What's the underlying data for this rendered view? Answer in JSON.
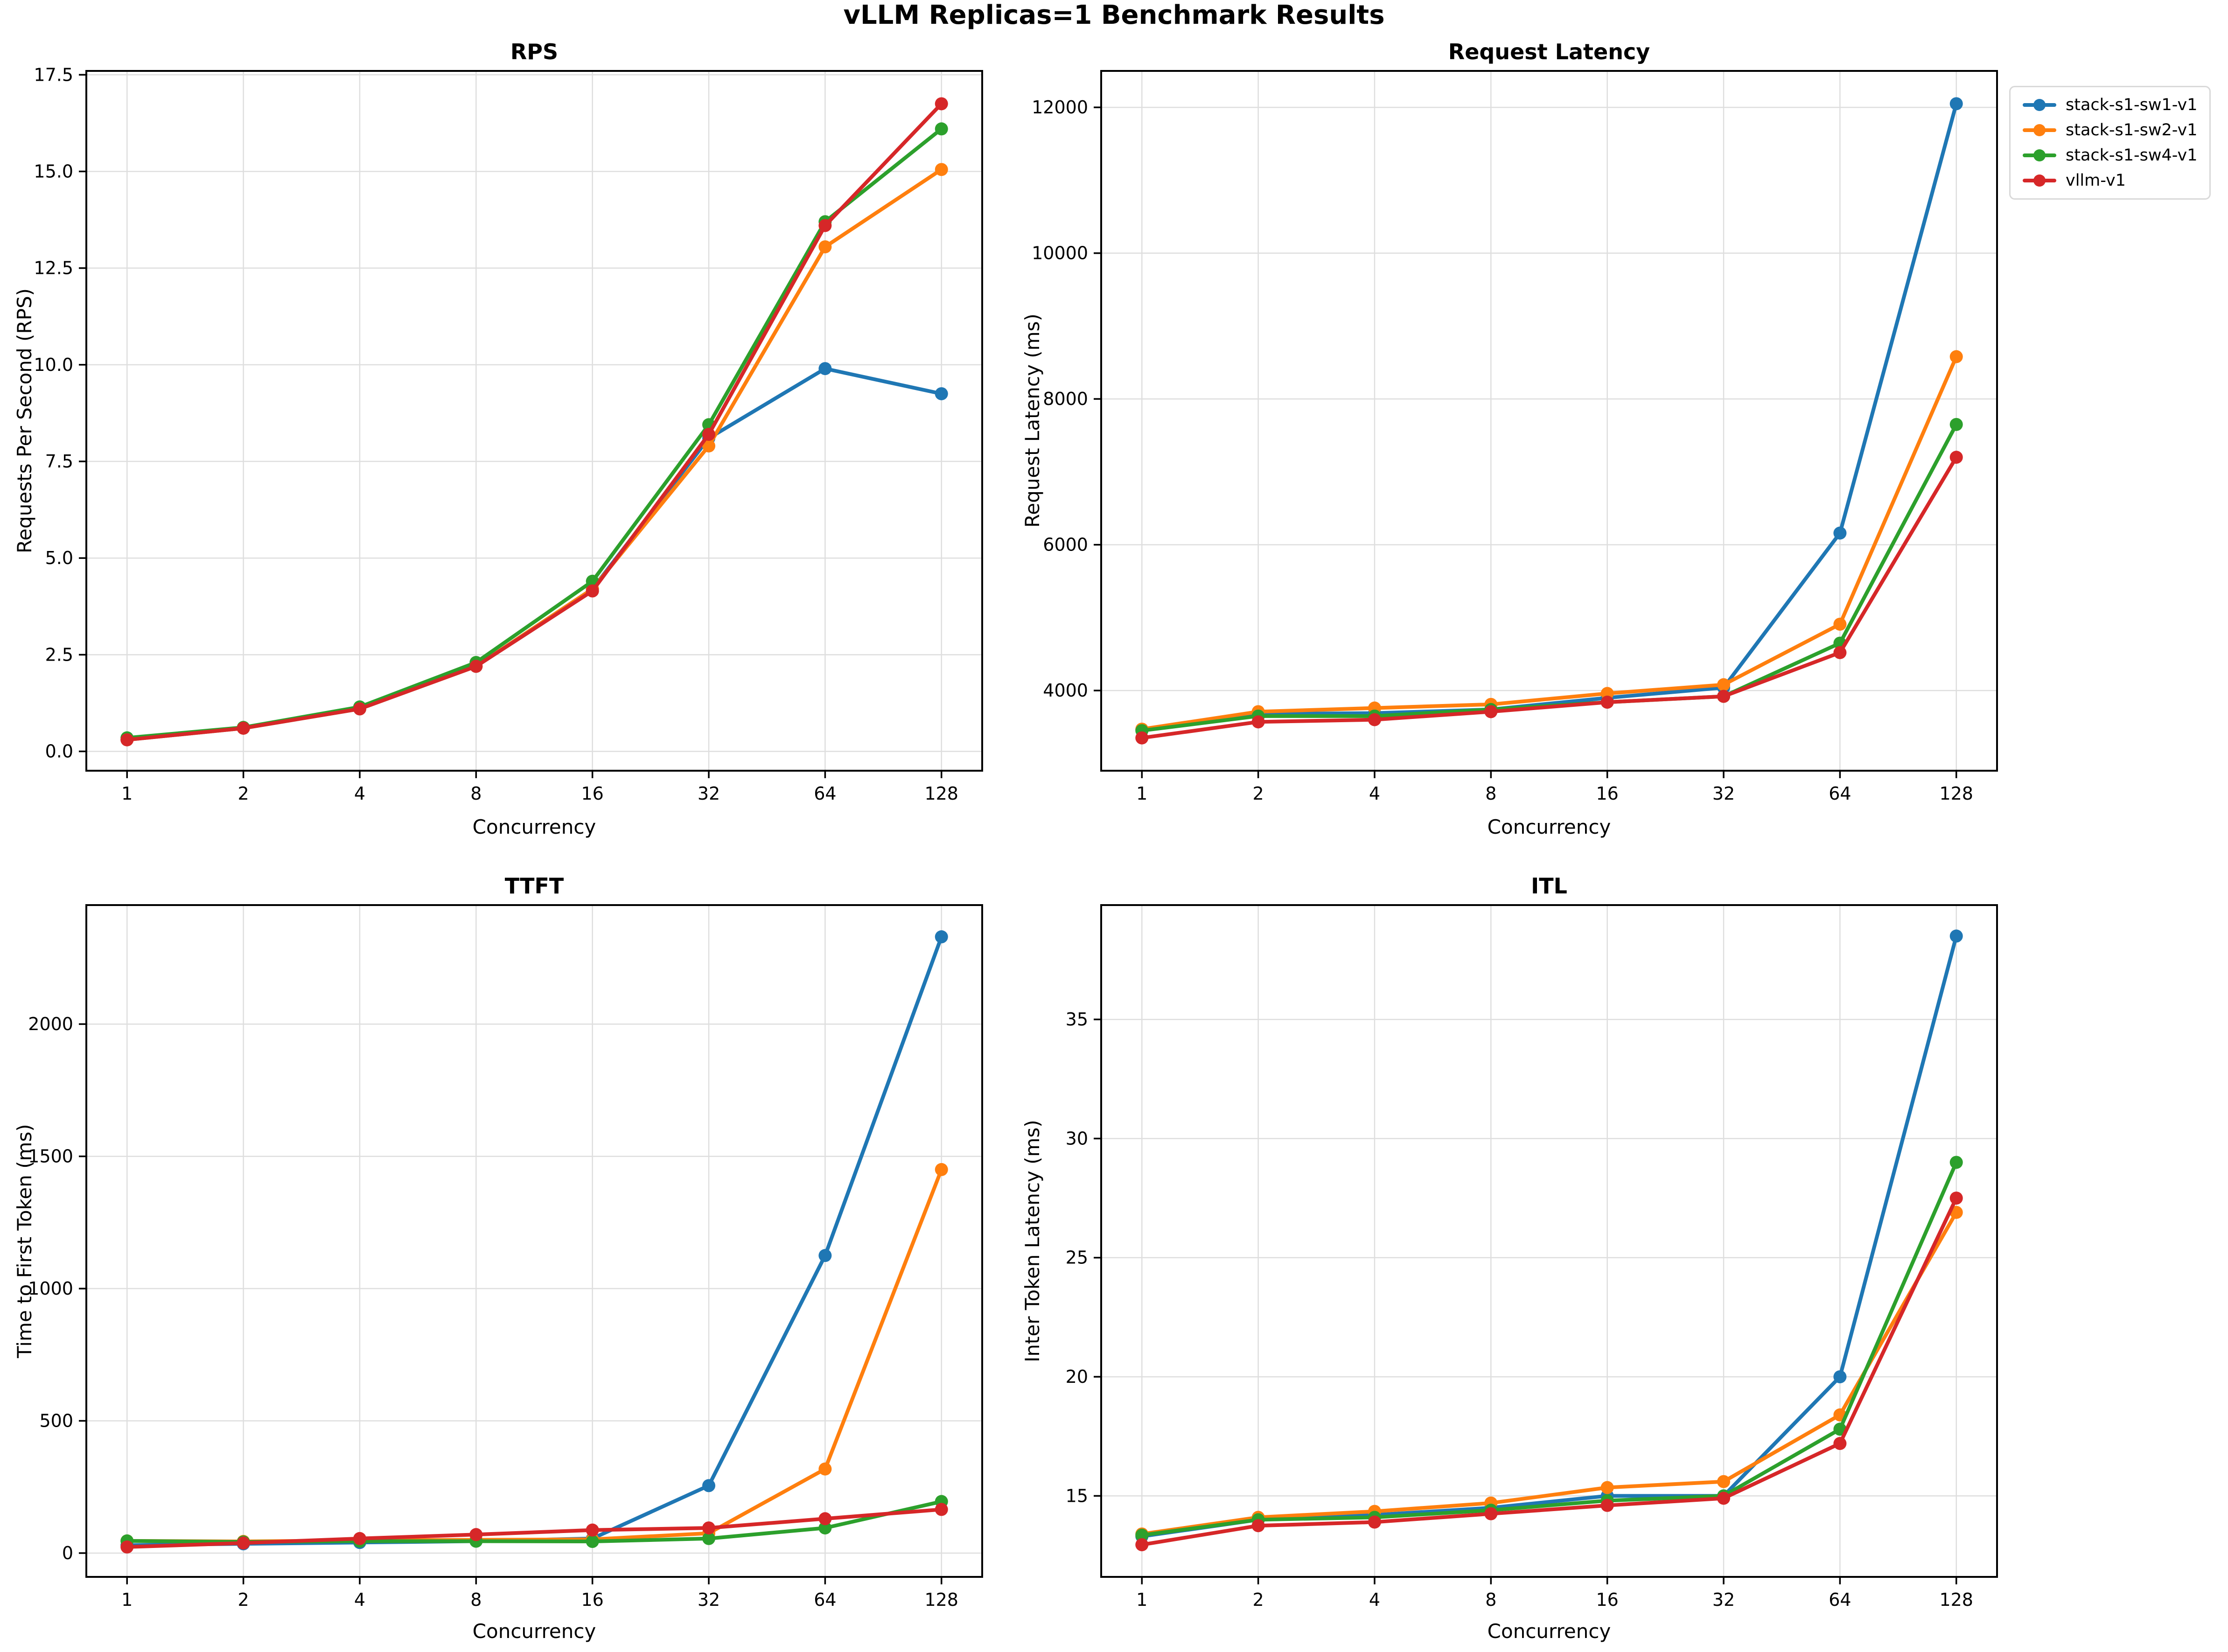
{
  "figure": {
    "title": "vLLM Replicas=1 Benchmark Results",
    "background": "#ffffff",
    "grid_color": "#dedede"
  },
  "legend": {
    "position": "upper right outside",
    "items": [
      {
        "label": "stack-s1-sw1-v1",
        "color": "#1f77b4"
      },
      {
        "label": "stack-s1-sw2-v1",
        "color": "#ff7f0e"
      },
      {
        "label": "stack-s1-sw4-v1",
        "color": "#2ca02c"
      },
      {
        "label": "vllm-v1",
        "color": "#d62728"
      }
    ]
  },
  "chart_data": [
    {
      "type": "line",
      "title": "RPS",
      "xlabel": "Concurrency",
      "ylabel": "Requests Per Second (RPS)",
      "x_scale": "log2",
      "grid": true,
      "x_categories": [
        1,
        2,
        4,
        8,
        16,
        32,
        64,
        128
      ],
      "xlim": [
        -0.35,
        7.35
      ],
      "ylim": [
        -0.5,
        17.6
      ],
      "ytick_values": [
        0.0,
        2.5,
        5.0,
        7.5,
        10.0,
        12.5,
        15.0,
        17.5
      ],
      "ytick_labels": [
        "0.0",
        "2.5",
        "5.0",
        "7.5",
        "10.0",
        "12.5",
        "15.0",
        "17.5"
      ],
      "series": [
        {
          "name": "stack-s1-sw1-v1",
          "color": "#1f77b4",
          "values": [
            0.3,
            0.6,
            1.1,
            2.2,
            4.2,
            8.1,
            9.9,
            9.25
          ]
        },
        {
          "name": "stack-s1-sw2-v1",
          "color": "#ff7f0e",
          "values": [
            0.3,
            0.6,
            1.1,
            2.2,
            4.2,
            7.9,
            13.05,
            15.05
          ]
        },
        {
          "name": "stack-s1-sw4-v1",
          "color": "#2ca02c",
          "values": [
            0.35,
            0.62,
            1.15,
            2.3,
            4.4,
            8.45,
            13.7,
            16.1
          ]
        },
        {
          "name": "vllm-v1",
          "color": "#d62728",
          "values": [
            0.3,
            0.6,
            1.1,
            2.2,
            4.15,
            8.2,
            13.6,
            16.75
          ]
        }
      ]
    },
    {
      "type": "line",
      "title": "Request Latency",
      "xlabel": "Concurrency",
      "ylabel": "Request Latency (ms)",
      "x_scale": "log2",
      "grid": true,
      "x_categories": [
        1,
        2,
        4,
        8,
        16,
        32,
        64,
        128
      ],
      "xlim": [
        -0.35,
        7.35
      ],
      "ylim": [
        2900,
        12500
      ],
      "ytick_values": [
        4000,
        6000,
        8000,
        10000,
        12000
      ],
      "ytick_labels": [
        "4000",
        "6000",
        "8000",
        "10000",
        "12000"
      ],
      "series": [
        {
          "name": "stack-s1-sw1-v1",
          "color": "#1f77b4",
          "values": [
            3460,
            3680,
            3690,
            3740,
            3900,
            4040,
            6160,
            12050
          ]
        },
        {
          "name": "stack-s1-sw2-v1",
          "color": "#ff7f0e",
          "values": [
            3470,
            3710,
            3760,
            3810,
            3960,
            4080,
            4910,
            8580
          ]
        },
        {
          "name": "stack-s1-sw4-v1",
          "color": "#2ca02c",
          "values": [
            3450,
            3650,
            3650,
            3740,
            3840,
            3920,
            4650,
            7650
          ]
        },
        {
          "name": "vllm-v1",
          "color": "#d62728",
          "values": [
            3350,
            3570,
            3600,
            3710,
            3840,
            3920,
            4520,
            7200
          ]
        }
      ]
    },
    {
      "type": "line",
      "title": "TTFT",
      "xlabel": "Concurrency",
      "ylabel": "Time to First Token (ms)",
      "x_scale": "log2",
      "grid": true,
      "x_categories": [
        1,
        2,
        4,
        8,
        16,
        32,
        64,
        128
      ],
      "xlim": [
        -0.35,
        7.35
      ],
      "ylim": [
        -90,
        2450
      ],
      "ytick_values": [
        0,
        500,
        1000,
        1500,
        2000
      ],
      "ytick_labels": [
        "0",
        "500",
        "1000",
        "1500",
        "2000"
      ],
      "series": [
        {
          "name": "stack-s1-sw1-v1",
          "color": "#1f77b4",
          "values": [
            30,
            35,
            40,
            45,
            55,
            255,
            1125,
            2330
          ]
        },
        {
          "name": "stack-s1-sw2-v1",
          "color": "#ff7f0e",
          "values": [
            46,
            44,
            48,
            50,
            52,
            75,
            318,
            1450
          ]
        },
        {
          "name": "stack-s1-sw4-v1",
          "color": "#2ca02c",
          "values": [
            46,
            42,
            45,
            45,
            44,
            55,
            95,
            195
          ]
        },
        {
          "name": "vllm-v1",
          "color": "#d62728",
          "values": [
            23,
            38,
            55,
            70,
            87,
            95,
            130,
            165
          ]
        }
      ]
    },
    {
      "type": "line",
      "title": "ITL",
      "xlabel": "Concurrency",
      "ylabel": "Inter Token Latency (ms)",
      "x_scale": "log2",
      "grid": true,
      "x_categories": [
        1,
        2,
        4,
        8,
        16,
        32,
        64,
        128
      ],
      "xlim": [
        -0.35,
        7.35
      ],
      "ylim": [
        11.6,
        39.8
      ],
      "ytick_values": [
        15,
        20,
        25,
        30,
        35
      ],
      "ytick_labels": [
        "15",
        "20",
        "25",
        "30",
        "35"
      ],
      "series": [
        {
          "name": "stack-s1-sw1-v1",
          "color": "#1f77b4",
          "values": [
            13.3,
            14.0,
            14.2,
            14.5,
            15.0,
            15.0,
            20.0,
            38.5
          ]
        },
        {
          "name": "stack-s1-sw2-v1",
          "color": "#ff7f0e",
          "values": [
            13.4,
            14.1,
            14.35,
            14.7,
            15.35,
            15.6,
            18.4,
            26.9
          ]
        },
        {
          "name": "stack-s1-sw4-v1",
          "color": "#2ca02c",
          "values": [
            13.35,
            14.0,
            14.1,
            14.4,
            14.8,
            15.0,
            17.8,
            29.0
          ]
        },
        {
          "name": "vllm-v1",
          "color": "#d62728",
          "values": [
            12.95,
            13.75,
            13.9,
            14.25,
            14.6,
            14.9,
            17.2,
            27.5
          ]
        }
      ]
    }
  ]
}
